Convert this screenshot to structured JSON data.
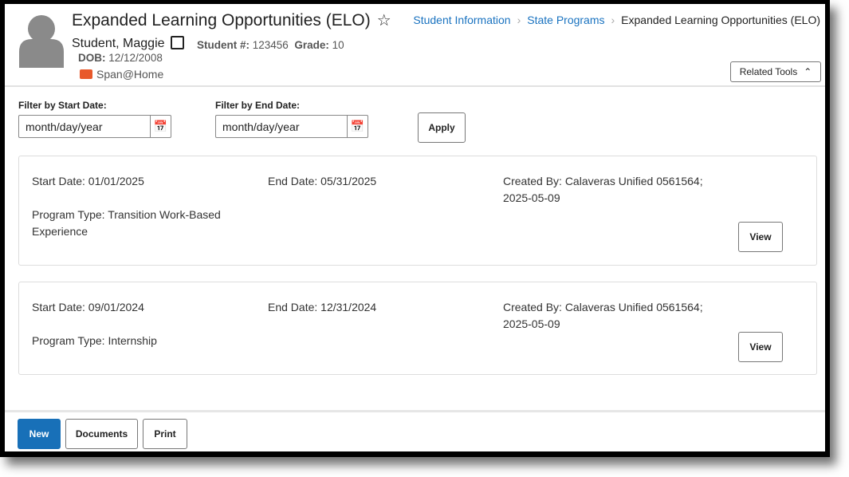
{
  "header": {
    "title": "Expanded Learning Opportunities (ELO)",
    "student_name": "Student, Maggie",
    "student_num_label": "Student #:",
    "student_num": "123456",
    "grade_label": "Grade:",
    "grade": "10",
    "dob_label": "DOB:",
    "dob": "12/12/2008",
    "program_flag": "Span@Home"
  },
  "breadcrumb": [
    "Student Information",
    "State Programs",
    "Expanded Learning Opportunities (ELO)"
  ],
  "related_tools": "Related Tools",
  "filters": {
    "start_label": "Filter by Start Date:",
    "end_label": "Filter by End Date:",
    "start_value": "month/day/year",
    "end_value": "month/day/year",
    "apply": "Apply"
  },
  "records": [
    {
      "start": "Start Date: 01/01/2025",
      "end": "End Date: 05/31/2025",
      "created": "Created By: Calaveras Unified 0561564;",
      "created_date": "2025-05-09",
      "program": "Program Type: Transition Work-Based",
      "program2": "Experience",
      "view": "View"
    },
    {
      "start": "Start Date: 09/01/2024",
      "end": "End Date: 12/31/2024",
      "created": "Created By: Calaveras Unified 0561564;",
      "created_date": "2025-05-09",
      "program": "Program Type: Internship",
      "program2": "",
      "view": "View"
    }
  ],
  "footer": {
    "new": "New",
    "documents": "Documents",
    "print": "Print"
  }
}
